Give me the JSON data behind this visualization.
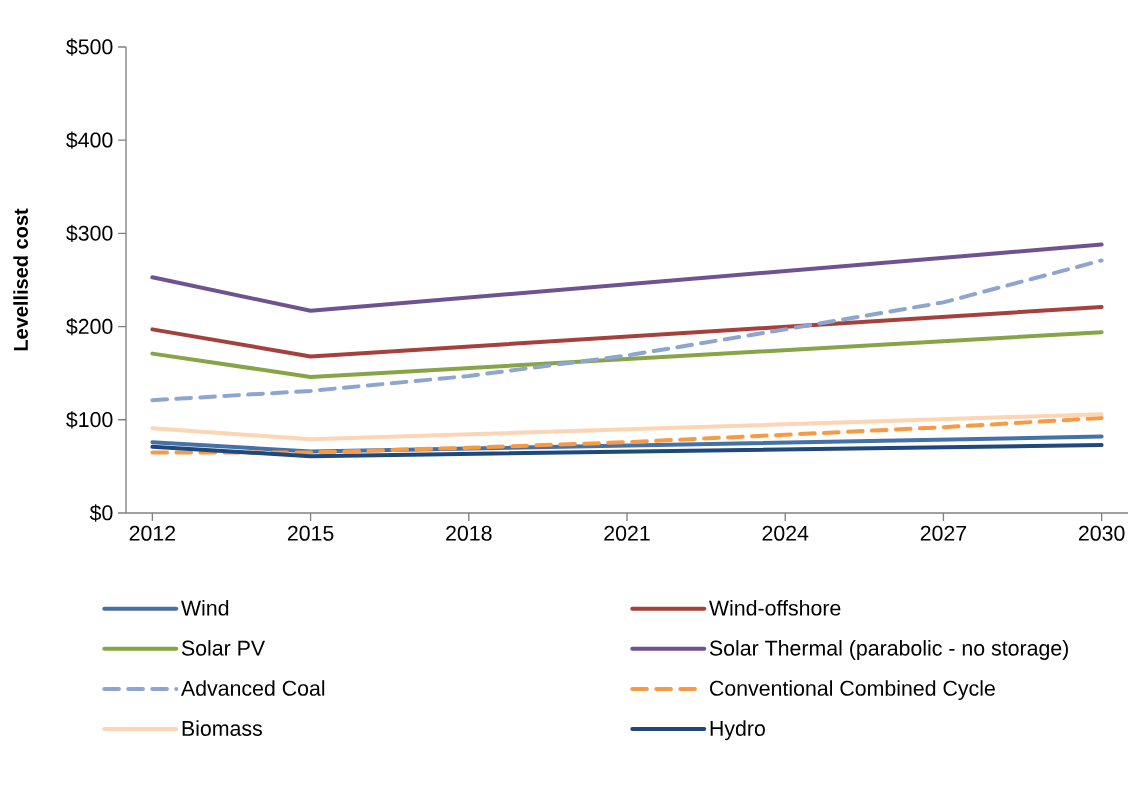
{
  "chart_data": {
    "type": "line",
    "ylabel": "Levellised cost",
    "xlim": [
      2011.5,
      2030.5
    ],
    "xticks": [
      2012,
      2015,
      2018,
      2021,
      2024,
      2027,
      2030
    ],
    "ylim": [
      0,
      500
    ],
    "yticks": [
      {
        "value": 0,
        "label": "$0"
      },
      {
        "value": 100,
        "label": "$100"
      },
      {
        "value": 200,
        "label": "$200"
      },
      {
        "value": 300,
        "label": "$300"
      },
      {
        "value": 400,
        "label": "$400"
      },
      {
        "value": 500,
        "label": "$500"
      }
    ],
    "grid": false,
    "legend": "bottom",
    "marker": "none",
    "series": [
      {
        "name": "Wind",
        "color": "#4472a8",
        "line_style": "solid",
        "x": [
          2012,
          2015,
          2030
        ],
        "values": [
          76,
          66,
          82
        ]
      },
      {
        "name": "Wind-offshore",
        "color": "#a5403d",
        "line_style": "solid",
        "x": [
          2012,
          2015,
          2030
        ],
        "values": [
          197,
          168,
          221
        ]
      },
      {
        "name": "Solar PV",
        "color": "#87a547",
        "line_style": "solid",
        "x": [
          2012,
          2015,
          2030
        ],
        "values": [
          171,
          146,
          194
        ]
      },
      {
        "name": "Solar Thermal (parabolic - no storage)",
        "color": "#6f5390",
        "line_style": "solid",
        "x": [
          2012,
          2015,
          2030
        ],
        "values": [
          253,
          217,
          288
        ]
      },
      {
        "name": "Advanced Coal",
        "color": "#8ea6cf",
        "line_style": "dashed",
        "x": [
          2012,
          2015,
          2018,
          2021,
          2024,
          2027,
          2030
        ],
        "values": [
          121,
          131,
          147,
          169,
          197,
          226,
          271
        ]
      },
      {
        "name": "Conventional Combined Cycle",
        "color": "#f79a46",
        "line_style": "dashed",
        "x": [
          2012,
          2015,
          2018,
          2021,
          2024,
          2027,
          2030
        ],
        "values": [
          65,
          65,
          70,
          76,
          84,
          92,
          102
        ]
      },
      {
        "name": "Biomass",
        "color": "#fcd5b4",
        "line_style": "solid",
        "x": [
          2012,
          2015,
          2030
        ],
        "values": [
          91,
          79,
          106
        ]
      },
      {
        "name": "Hydro",
        "color": "#1f497d",
        "line_style": "solid",
        "x": [
          2012,
          2015,
          2030
        ],
        "values": [
          71,
          61,
          73
        ]
      }
    ]
  }
}
